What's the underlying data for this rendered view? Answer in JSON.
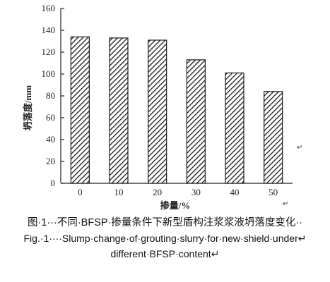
{
  "chart_data": {
    "type": "bar",
    "categories": [
      "0",
      "10",
      "20",
      "30",
      "40",
      "50"
    ],
    "values": [
      134,
      133,
      131,
      113,
      101,
      84
    ],
    "title": "",
    "xlabel": "掺量/%",
    "ylabel": "坍落度/mm",
    "ylim": [
      0,
      160
    ],
    "yticks": [
      "0",
      "20",
      "40",
      "60",
      "80",
      "100",
      "120",
      "140",
      "160"
    ],
    "grid": false,
    "bar_fill": "diagonal-hatch",
    "bar_color": "#1a1a1a"
  },
  "caption": {
    "line1": "图·1···不同·BFSP·掺量条件下新型盾构注浆浆液坍落度变化··",
    "line2": "Fig.·1····Slump·change·of·grouting·slurry·for·new·shield·under↵",
    "line3": "different·BFSP·content↵"
  },
  "marks": {
    "return1": "↵",
    "return2": "↵"
  }
}
